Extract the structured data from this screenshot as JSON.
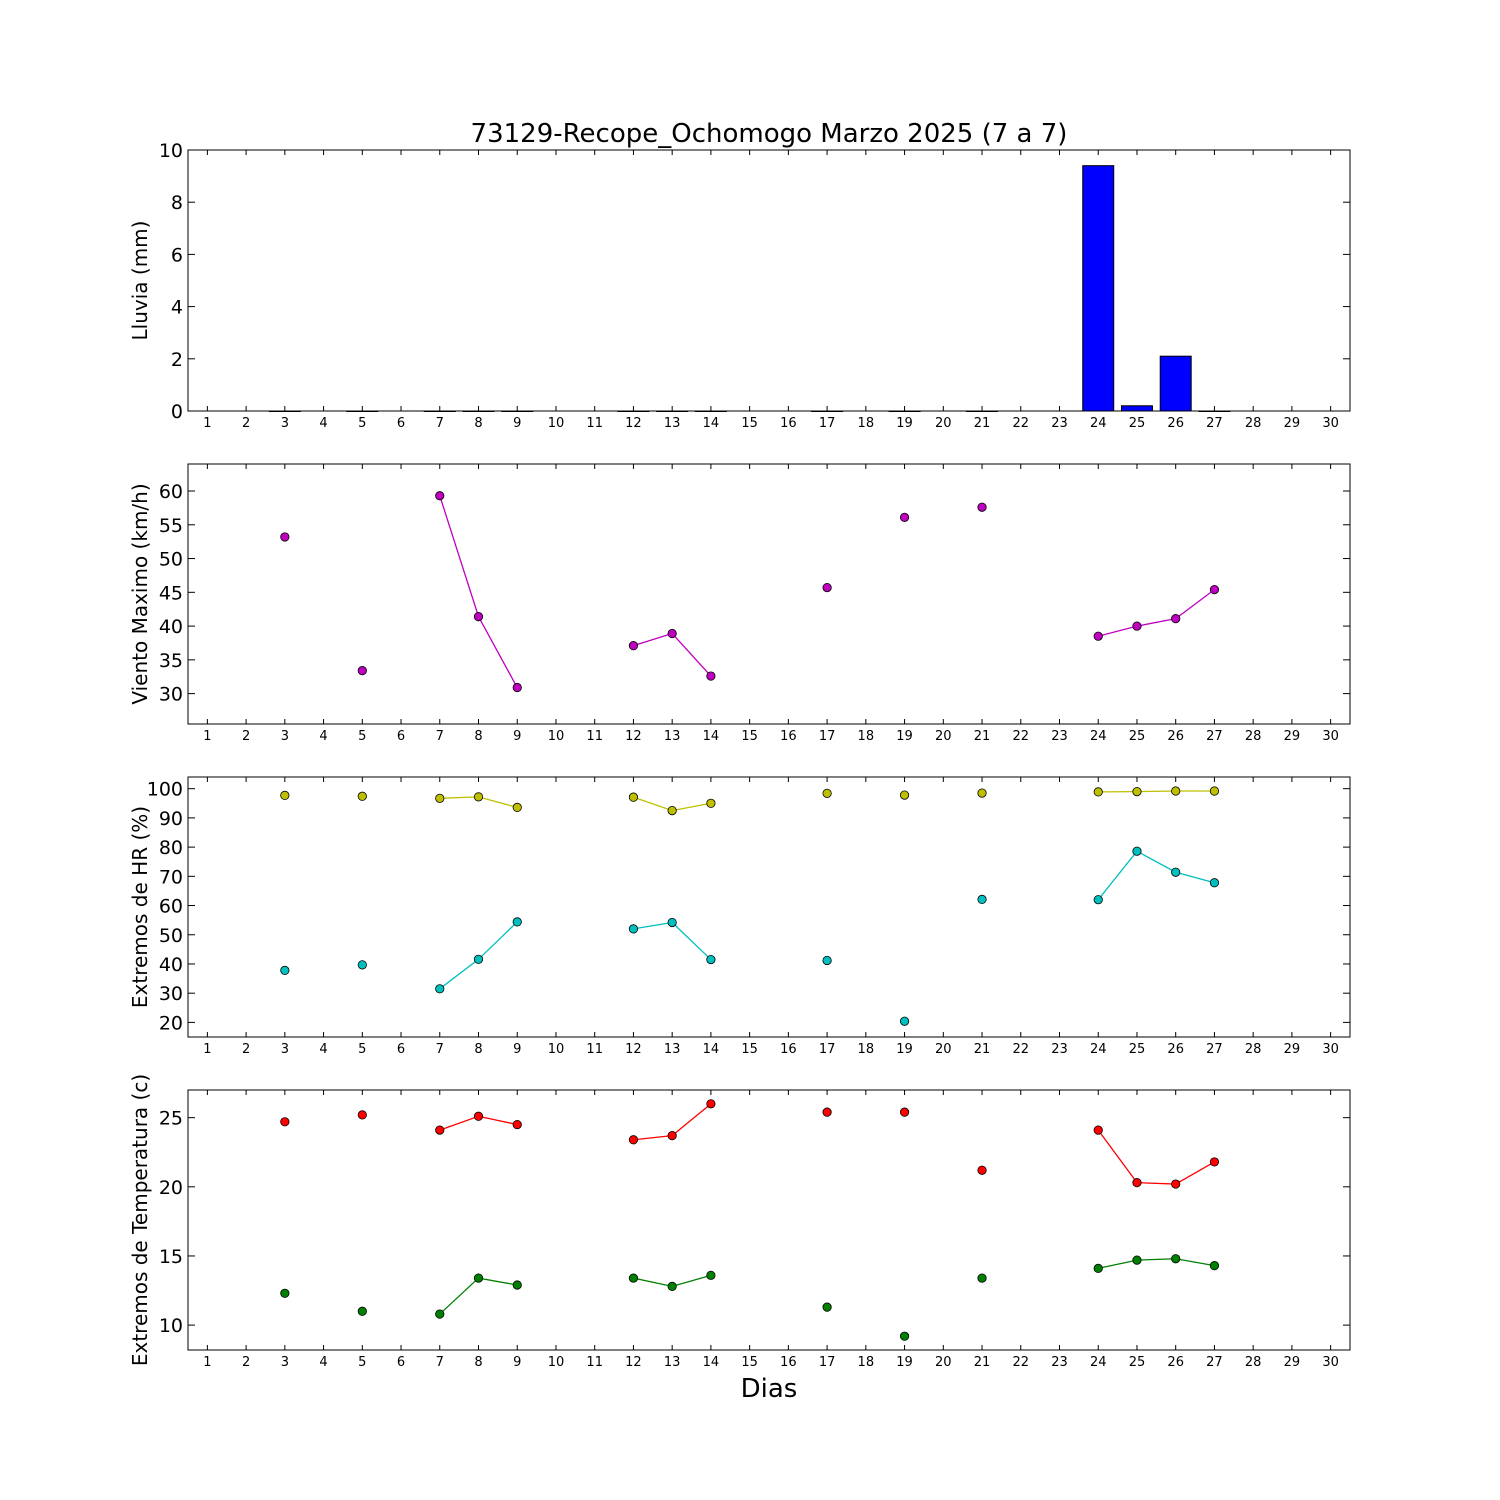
{
  "title": "73129-Recope_Ochomogo Marzo 2025  (7 a 7)",
  "xlabel": "Dias",
  "colors": {
    "bar": "#0000ff",
    "wind": "#bf00bf",
    "hr_max": "#bfbf00",
    "hr_min": "#00bfbf",
    "temp_max": "#ff0000",
    "temp_min": "#008000"
  },
  "chart_data": [
    {
      "type": "bar",
      "ylabel": "Lluvia (mm)",
      "x": [
        1,
        2,
        3,
        4,
        5,
        6,
        7,
        8,
        9,
        10,
        11,
        12,
        13,
        14,
        15,
        16,
        17,
        18,
        19,
        20,
        21,
        22,
        23,
        24,
        25,
        26,
        27,
        28,
        29,
        30
      ],
      "ylim": [
        0,
        10
      ],
      "yticks": [
        0,
        2,
        4,
        6,
        8,
        10
      ],
      "series": [
        {
          "values": [
            null,
            null,
            0,
            null,
            0,
            null,
            0,
            0,
            0,
            null,
            null,
            0,
            0,
            0,
            null,
            null,
            0,
            null,
            0,
            null,
            0,
            null,
            null,
            9.4,
            0.2,
            2.1,
            0,
            null,
            null,
            null
          ]
        }
      ]
    },
    {
      "type": "line",
      "ylabel": "Viento Maximo (km/h)",
      "x": [
        1,
        2,
        3,
        4,
        5,
        6,
        7,
        8,
        9,
        10,
        11,
        12,
        13,
        14,
        15,
        16,
        17,
        18,
        19,
        20,
        21,
        22,
        23,
        24,
        25,
        26,
        27,
        28,
        29,
        30
      ],
      "ylim": [
        25.5,
        64
      ],
      "yticks": [
        30,
        35,
        40,
        45,
        50,
        55,
        60
      ],
      "series": [
        {
          "values": [
            null,
            null,
            53.2,
            null,
            33.4,
            null,
            59.3,
            41.4,
            30.9,
            null,
            null,
            37.1,
            38.9,
            32.6,
            null,
            null,
            45.7,
            null,
            56.1,
            null,
            57.6,
            null,
            null,
            38.5,
            40.0,
            41.1,
            45.4,
            null,
            null,
            null
          ]
        }
      ]
    },
    {
      "type": "line",
      "ylabel": "Extremos de HR (%)",
      "x": [
        1,
        2,
        3,
        4,
        5,
        6,
        7,
        8,
        9,
        10,
        11,
        12,
        13,
        14,
        15,
        16,
        17,
        18,
        19,
        20,
        21,
        22,
        23,
        24,
        25,
        26,
        27,
        28,
        29,
        30
      ],
      "ylim": [
        15,
        104
      ],
      "yticks": [
        20,
        30,
        40,
        50,
        60,
        70,
        80,
        90,
        100
      ],
      "series": [
        {
          "values": [
            null,
            null,
            97.7,
            null,
            97.4,
            null,
            96.7,
            97.2,
            93.6,
            null,
            null,
            97.1,
            92.5,
            95.0,
            null,
            null,
            98.4,
            null,
            97.8,
            null,
            98.5,
            null,
            null,
            98.9,
            99.0,
            99.2,
            99.2,
            null,
            null,
            null
          ]
        },
        {
          "values": [
            null,
            null,
            37.8,
            null,
            39.7,
            null,
            31.5,
            41.6,
            54.4,
            null,
            null,
            52.0,
            54.2,
            41.5,
            null,
            null,
            41.2,
            null,
            20.4,
            null,
            62.1,
            null,
            null,
            62.0,
            78.6,
            71.4,
            67.8,
            null,
            null,
            null
          ]
        }
      ]
    },
    {
      "type": "line",
      "ylabel": "Extremos de Temperatura (c)",
      "x": [
        1,
        2,
        3,
        4,
        5,
        6,
        7,
        8,
        9,
        10,
        11,
        12,
        13,
        14,
        15,
        16,
        17,
        18,
        19,
        20,
        21,
        22,
        23,
        24,
        25,
        26,
        27,
        28,
        29,
        30
      ],
      "ylim": [
        8.2,
        27.0
      ],
      "yticks": [
        10,
        15,
        20,
        25
      ],
      "series": [
        {
          "values": [
            null,
            null,
            24.7,
            null,
            25.2,
            null,
            24.1,
            25.1,
            24.5,
            null,
            null,
            23.4,
            23.7,
            26.0,
            null,
            null,
            25.4,
            null,
            25.4,
            null,
            21.2,
            null,
            null,
            24.1,
            20.3,
            20.2,
            21.8,
            null,
            null,
            null
          ]
        },
        {
          "values": [
            null,
            null,
            12.3,
            null,
            11.0,
            null,
            10.8,
            13.4,
            12.9,
            null,
            null,
            13.4,
            12.8,
            13.6,
            null,
            null,
            11.3,
            null,
            9.2,
            null,
            13.4,
            null,
            null,
            14.1,
            14.7,
            14.8,
            14.3,
            null,
            null,
            null
          ]
        }
      ]
    }
  ]
}
